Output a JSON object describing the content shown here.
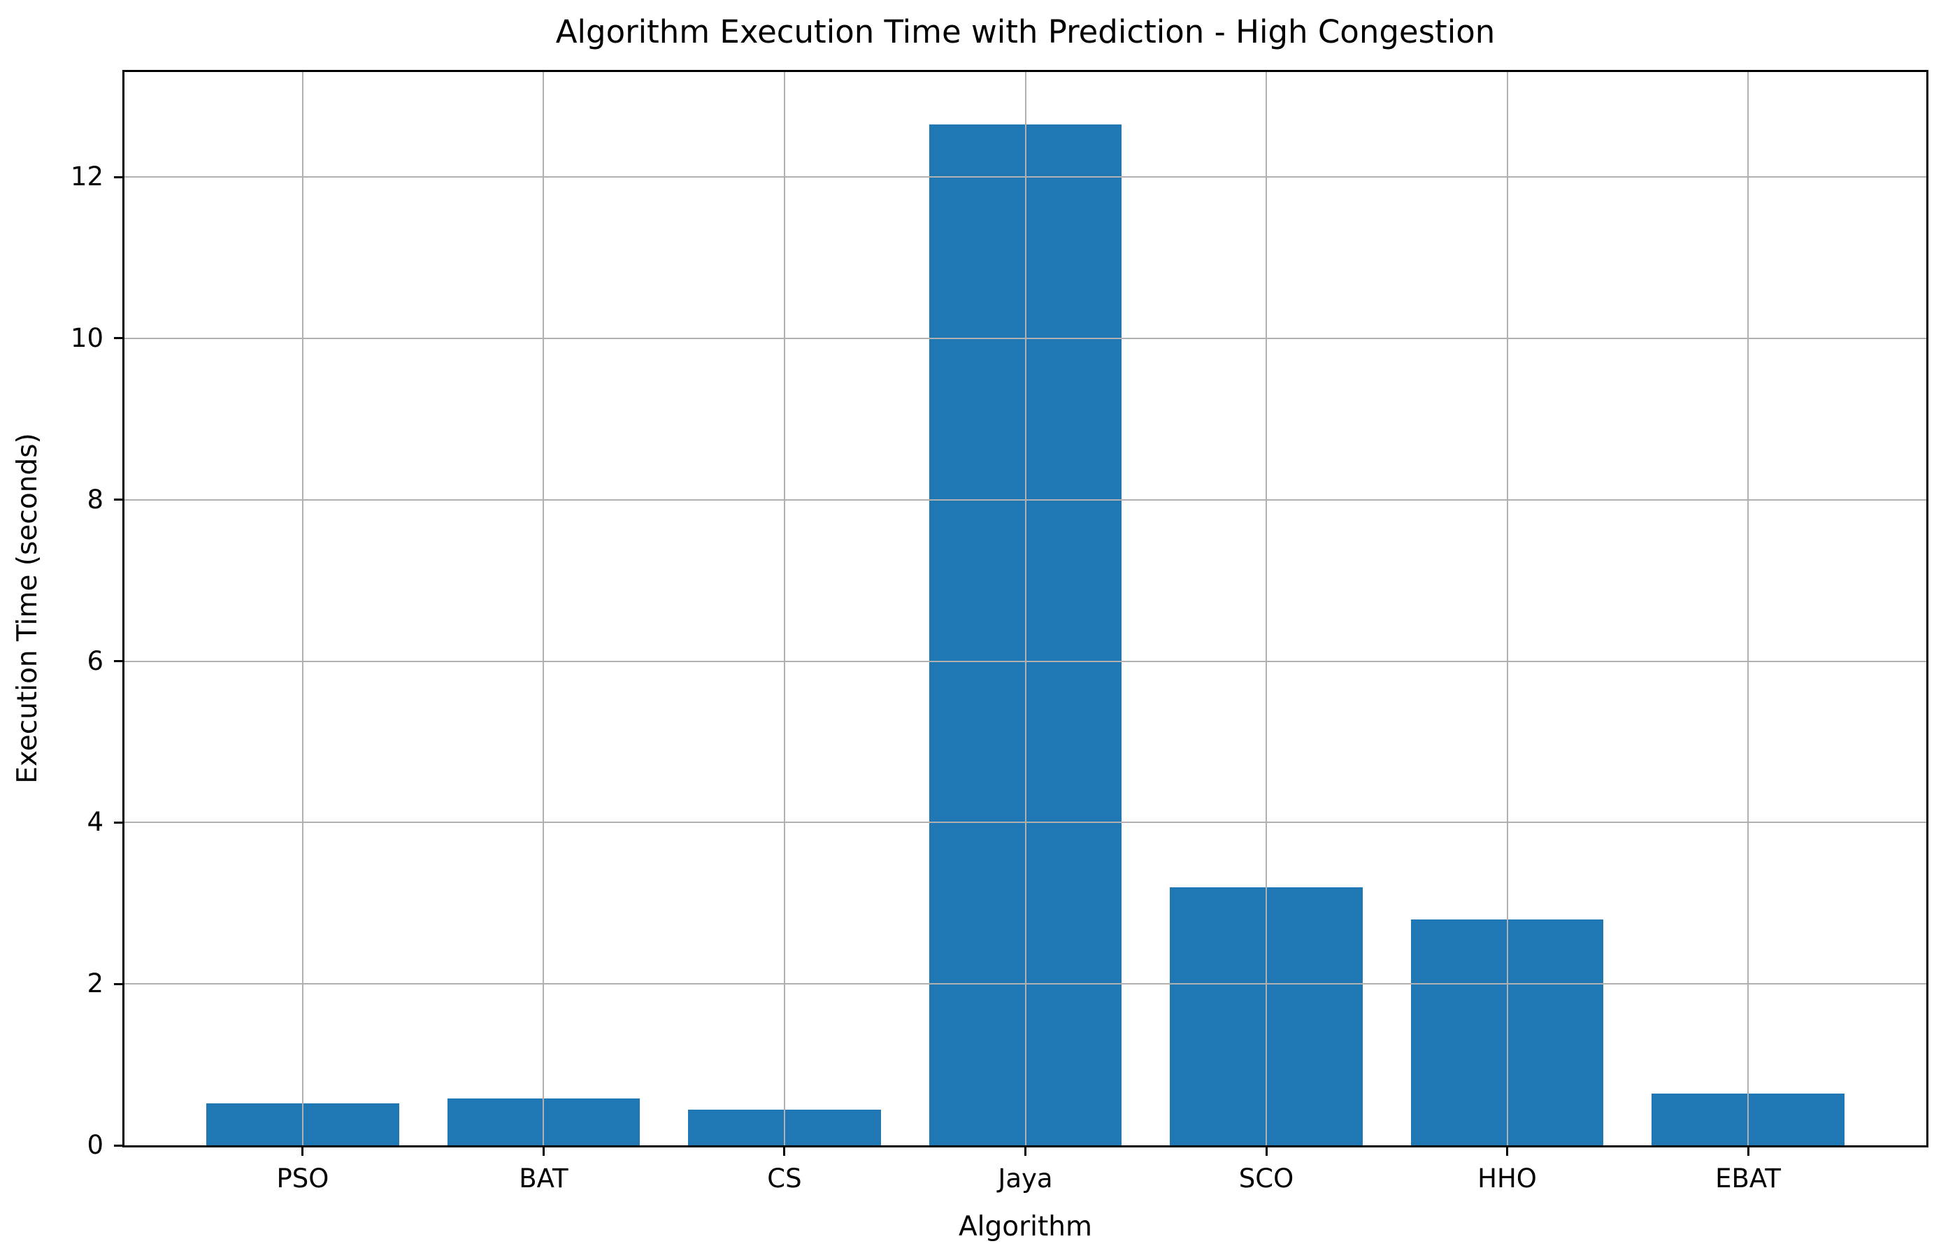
{
  "figure": {
    "background": "#ffffff",
    "text_color": "#000000"
  },
  "chart_data": {
    "type": "bar",
    "title": "Algorithm Execution Time with Prediction - High Congestion",
    "xlabel": "Algorithm",
    "ylabel": "Execution Time (seconds)",
    "categories": [
      "PSO",
      "BAT",
      "CS",
      "Jaya",
      "SCO",
      "HHO",
      "EBAT"
    ],
    "values": [
      0.52,
      0.58,
      0.44,
      12.65,
      3.2,
      2.8,
      0.64
    ],
    "series": [
      {
        "name": "Execution Time",
        "values": [
          0.52,
          0.58,
          0.44,
          12.65,
          3.2,
          2.8,
          0.64
        ]
      }
    ],
    "ylim": [
      0,
      13.3
    ],
    "yticks": [
      0,
      2,
      4,
      6,
      8,
      10,
      12
    ],
    "grid": "on",
    "grid_above_bars": true,
    "legend": "none",
    "bar_color": "#1f77b4",
    "grid_color": "#b0b0b0",
    "axis_color": "#000000",
    "bar_width_fraction": 0.8
  }
}
